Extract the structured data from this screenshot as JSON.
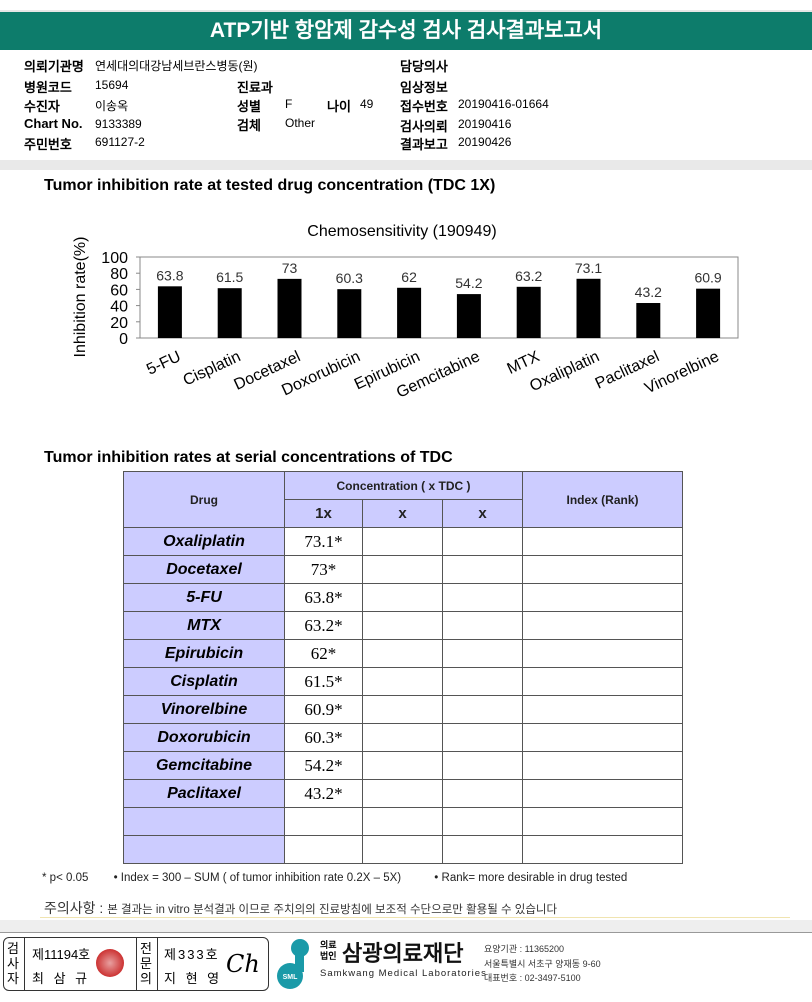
{
  "title": "ATP기반 항암제 감수성 검사 검사결과보고서",
  "info": {
    "institution_label": "의뢰기관명",
    "institution": "연세대의대강남세브란스병동(원)",
    "hospital_code_label": "병원코드",
    "hospital_code": "15694",
    "patient_label": "수진자",
    "patient": "이송옥",
    "chart_label": "Chart No.",
    "chart": "9133389",
    "id_label": "주민번호",
    "id": "691127-2",
    "dept_label": "진료과",
    "dept": "",
    "sex_label": "성별",
    "sex": "F",
    "age_label": "나이",
    "age": "49",
    "specimen_label": "검체",
    "specimen": "Other",
    "doctor_label": "담당의사",
    "doctor": "",
    "clinical_label": "임상정보",
    "clinical": "",
    "receipt_label": "접수번호",
    "receipt": "20190416-01664",
    "request_label": "검사의뢰",
    "request": "20190416",
    "report_label": "결과보고",
    "report": "20190426"
  },
  "section1": "Tumor inhibition rate at tested drug concentration (TDC 1X)",
  "chart_data": {
    "type": "bar",
    "title": "Chemosensitivity (190949)",
    "ylabel": "Inhibition rate(%)",
    "xlabel": "",
    "ylim": [
      0,
      100
    ],
    "yticks": [
      0,
      20,
      40,
      60,
      80,
      100
    ],
    "categories": [
      "5-FU",
      "Cisplatin",
      "Docetaxel",
      "Doxorubicin",
      "Epirubicin",
      "Gemcitabine",
      "MTX",
      "Oxaliplatin",
      "Paclitaxel",
      "Vinorelbine"
    ],
    "values": [
      63.8,
      61.5,
      73,
      60.3,
      62,
      54.2,
      63.2,
      73.1,
      43.2,
      60.9
    ],
    "bar_color": "#000000",
    "grid": false
  },
  "section2": "Tumor inhibition rates at serial concentrations of TDC",
  "table": {
    "drug_header": "Drug",
    "conc_header": "Concentration ( x TDC )",
    "index_header": "Index (Rank)",
    "conc_cols": [
      "1x",
      "x",
      "x"
    ],
    "rows": [
      {
        "drug": "Oxaliplatin",
        "v": "73.1*"
      },
      {
        "drug": "Docetaxel",
        "v": "73*"
      },
      {
        "drug": "5-FU",
        "v": "63.8*"
      },
      {
        "drug": "MTX",
        "v": "63.2*"
      },
      {
        "drug": "Epirubicin",
        "v": "62*"
      },
      {
        "drug": "Cisplatin",
        "v": "61.5*"
      },
      {
        "drug": "Vinorelbine",
        "v": "60.9*"
      },
      {
        "drug": "Doxorubicin",
        "v": "60.3*"
      },
      {
        "drug": "Gemcitabine",
        "v": "54.2*"
      },
      {
        "drug": "Paclitaxel",
        "v": "43.2*"
      },
      {
        "drug": "",
        "v": ""
      },
      {
        "drug": "",
        "v": ""
      }
    ]
  },
  "footnotes": {
    "p": "* p< 0.05",
    "index": "• Index = 300 – SUM ( of tumor inhibition rate 0.2X  –  5X)",
    "rank": "• Rank= more desirable in drug tested"
  },
  "caution": {
    "label": "주의사항 :",
    "text": "본 결과는 in vitro 분석결과 이므로 주치의의 진료방침에 보조적 수단으로만 활용될 수 있습니다"
  },
  "signatures": {
    "tester_label": "검사자",
    "tester_no": "제11194호",
    "tester_name": "최 삼 규",
    "doc_label": "전문의",
    "doc_no": "제333호",
    "doc_name": "지 현 영"
  },
  "org": {
    "prefix1": "의료",
    "prefix2": "법인",
    "name": "삼광의료재단",
    "english": "Samkwang Medical Laboratories",
    "logo_text": "SML",
    "code": "요양기관 : 11365200",
    "address": "서울특별시 서초구 양재동 9-60",
    "phone": "대표번호 : 02-3497-5100",
    "color": "#1a9aa8"
  }
}
